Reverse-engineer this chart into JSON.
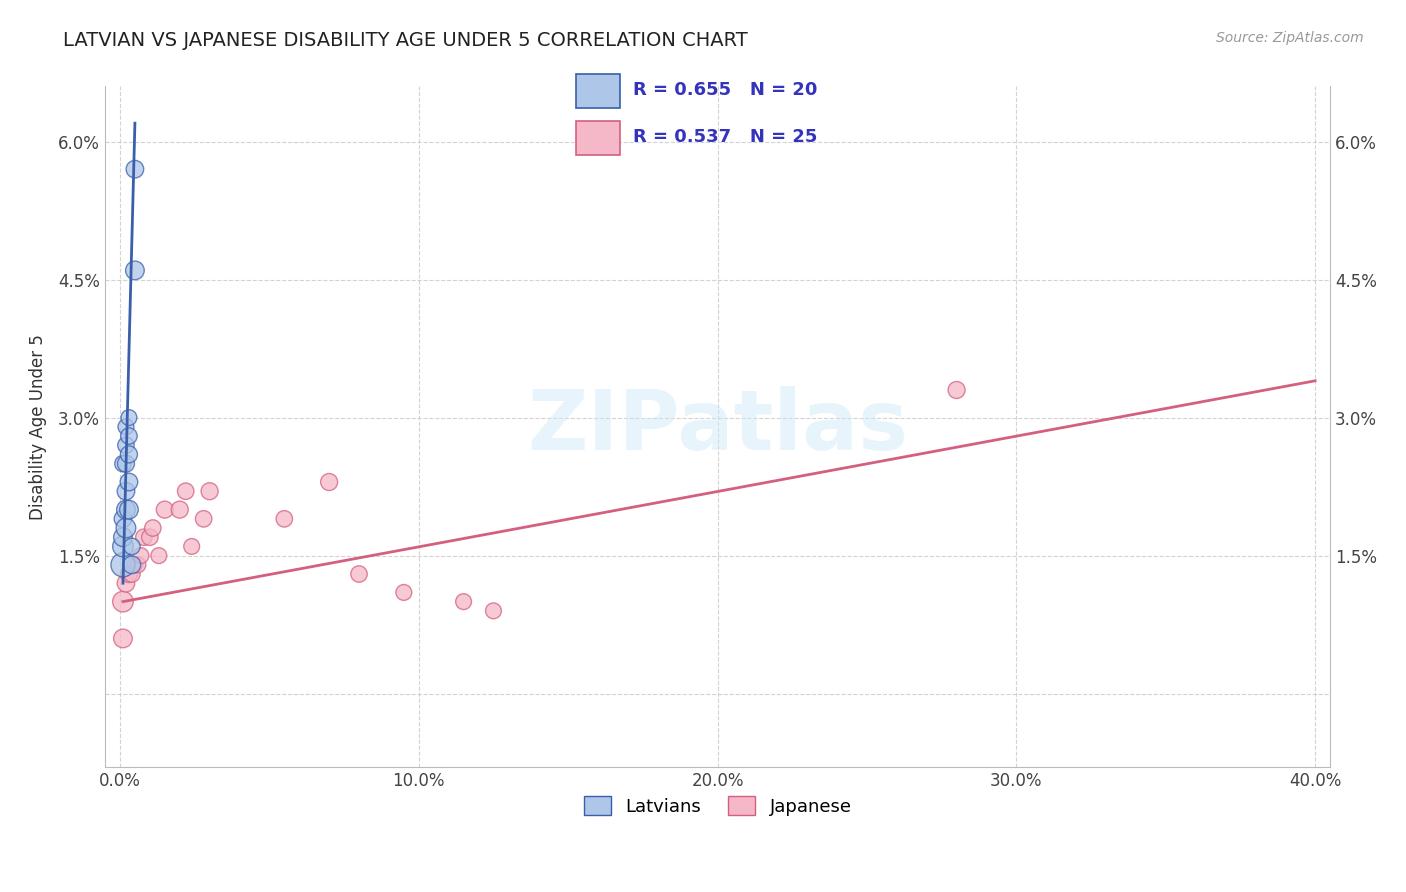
{
  "title": "LATVIAN VS JAPANESE DISABILITY AGE UNDER 5 CORRELATION CHART",
  "source": "Source: ZipAtlas.com",
  "ylabel": "Disability Age Under 5",
  "xlabel": "",
  "xlim": [
    -0.005,
    0.405
  ],
  "ylim": [
    -0.008,
    0.066
  ],
  "yticks": [
    0.0,
    0.015,
    0.03,
    0.045,
    0.06
  ],
  "ytick_labels": [
    "",
    "1.5%",
    "3.0%",
    "4.5%",
    "6.0%"
  ],
  "xticks": [
    0.0,
    0.1,
    0.2,
    0.3,
    0.4
  ],
  "xtick_labels": [
    "0.0%",
    "10.0%",
    "20.0%",
    "30.0%",
    "40.0%"
  ],
  "latvian_color": "#aec6e8",
  "japanese_color": "#f4b8c8",
  "latvian_line_color": "#3a5faa",
  "japanese_line_color": "#d46080",
  "legend_R_latvian": "R = 0.655",
  "legend_N_latvian": "N = 20",
  "legend_R_japanese": "R = 0.537",
  "legend_N_japanese": "N = 25",
  "legend_text_color": "#3333bb",
  "background_color": "#ffffff",
  "grid_color": "#c8c8c8",
  "latvian_x": [
    0.001,
    0.001,
    0.001,
    0.001,
    0.001,
    0.002,
    0.002,
    0.002,
    0.002,
    0.002,
    0.002,
    0.003,
    0.003,
    0.003,
    0.003,
    0.003,
    0.004,
    0.004,
    0.005,
    0.005
  ],
  "latvian_y": [
    0.014,
    0.016,
    0.017,
    0.019,
    0.025,
    0.018,
    0.02,
    0.022,
    0.025,
    0.027,
    0.029,
    0.02,
    0.023,
    0.026,
    0.028,
    0.03,
    0.014,
    0.016,
    0.046,
    0.057
  ],
  "japanese_x": [
    0.001,
    0.001,
    0.002,
    0.003,
    0.004,
    0.005,
    0.006,
    0.007,
    0.008,
    0.01,
    0.011,
    0.013,
    0.015,
    0.02,
    0.022,
    0.024,
    0.028,
    0.03,
    0.055,
    0.07,
    0.08,
    0.095,
    0.115,
    0.125,
    0.28
  ],
  "japanese_y": [
    0.01,
    0.006,
    0.012,
    0.013,
    0.013,
    0.014,
    0.014,
    0.015,
    0.017,
    0.017,
    0.018,
    0.015,
    0.02,
    0.02,
    0.022,
    0.016,
    0.019,
    0.022,
    0.019,
    0.023,
    0.013,
    0.011,
    0.01,
    0.009,
    0.033
  ],
  "latvian_line_x": [
    0.001,
    0.005
  ],
  "latvian_line_y": [
    0.012,
    0.062
  ],
  "japanese_line_x": [
    0.001,
    0.4
  ],
  "japanese_line_y": [
    0.01,
    0.034
  ],
  "latvian_dot_sizes": [
    300,
    220,
    180,
    160,
    140,
    200,
    180,
    160,
    150,
    140,
    130,
    180,
    160,
    150,
    140,
    130,
    160,
    140,
    180,
    160
  ],
  "japanese_dot_sizes": [
    220,
    180,
    160,
    150,
    140,
    130,
    130,
    130,
    140,
    140,
    140,
    130,
    150,
    150,
    140,
    130,
    140,
    150,
    140,
    150,
    140,
    130,
    130,
    130,
    150
  ]
}
